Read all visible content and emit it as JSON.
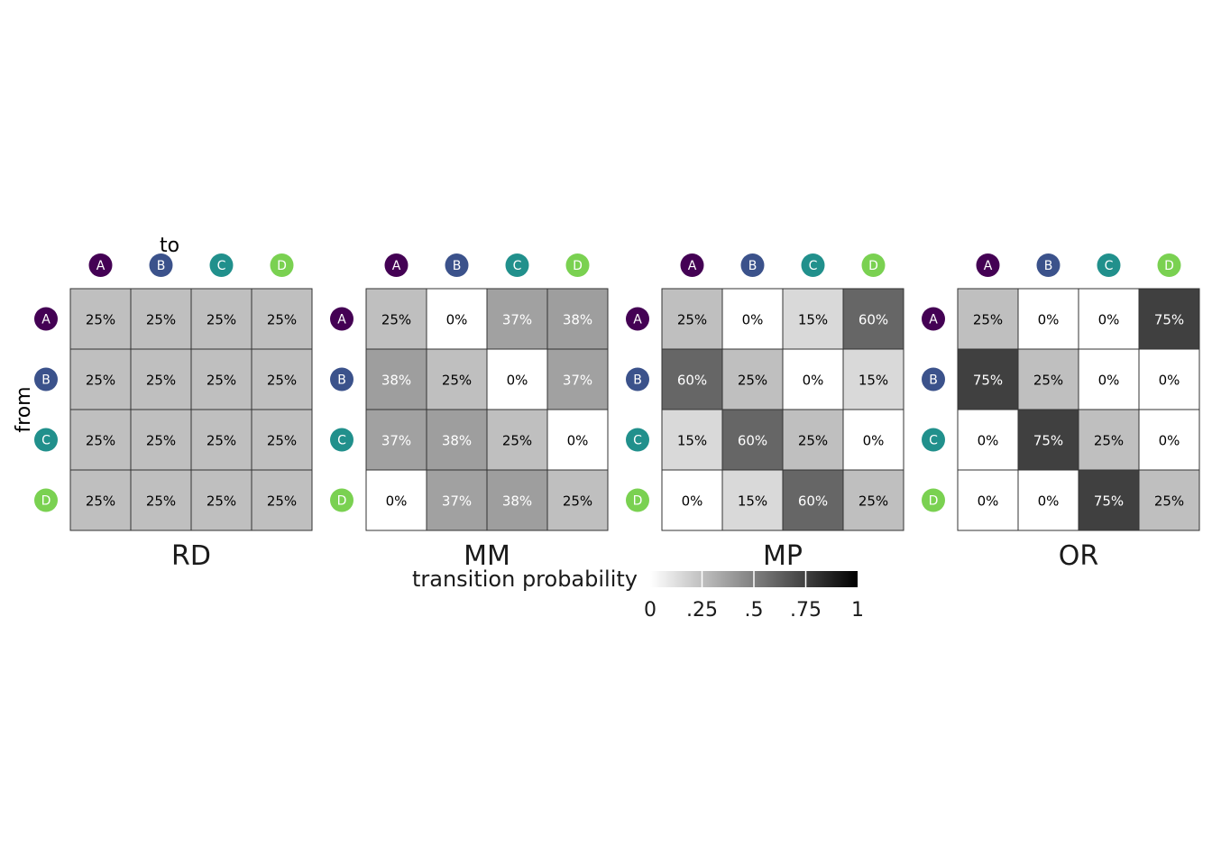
{
  "chart_data": {
    "type": "heatmap",
    "axis_labels": {
      "columns": "to",
      "rows": "from"
    },
    "states": [
      "A",
      "B",
      "C",
      "D"
    ],
    "state_colors": [
      "#440154",
      "#3b528b",
      "#21908c",
      "#7ad151"
    ],
    "panels": [
      {
        "name": "RD",
        "values": [
          [
            25,
            25,
            25,
            25
          ],
          [
            25,
            25,
            25,
            25
          ],
          [
            25,
            25,
            25,
            25
          ],
          [
            25,
            25,
            25,
            25
          ]
        ],
        "labels": [
          [
            "25%",
            "25%",
            "25%",
            "25%"
          ],
          [
            "25%",
            "25%",
            "25%",
            "25%"
          ],
          [
            "25%",
            "25%",
            "25%",
            "25%"
          ],
          [
            "25%",
            "25%",
            "25%",
            "25%"
          ]
        ]
      },
      {
        "name": "MM",
        "values": [
          [
            25,
            0,
            37,
            38
          ],
          [
            38,
            25,
            0,
            37
          ],
          [
            37,
            38,
            25,
            0
          ],
          [
            0,
            37,
            38,
            25
          ]
        ],
        "labels": [
          [
            "25%",
            "0%",
            "37%",
            "38%"
          ],
          [
            "38%",
            "25%",
            "0%",
            "37%"
          ],
          [
            "37%",
            "38%",
            "25%",
            "0%"
          ],
          [
            "0%",
            "37%",
            "38%",
            "25%"
          ]
        ]
      },
      {
        "name": "MP",
        "values": [
          [
            25,
            0,
            15,
            60
          ],
          [
            60,
            25,
            0,
            15
          ],
          [
            15,
            60,
            25,
            0
          ],
          [
            0,
            15,
            60,
            25
          ]
        ],
        "labels": [
          [
            "25%",
            "0%",
            "15%",
            "60%"
          ],
          [
            "60%",
            "25%",
            "0%",
            "15%"
          ],
          [
            "15%",
            "60%",
            "25%",
            "0%"
          ],
          [
            "0%",
            "15%",
            "60%",
            "25%"
          ]
        ]
      },
      {
        "name": "OR",
        "values": [
          [
            25,
            0,
            0,
            75
          ],
          [
            75,
            25,
            0,
            0
          ],
          [
            0,
            75,
            25,
            0
          ],
          [
            0,
            0,
            75,
            25
          ]
        ],
        "labels": [
          [
            "25%",
            "0%",
            "0%",
            "75%"
          ],
          [
            "75%",
            "25%",
            "0%",
            "0%"
          ],
          [
            "0%",
            "75%",
            "25%",
            "0%"
          ],
          [
            "0%",
            "0%",
            "75%",
            "25%"
          ]
        ]
      }
    ],
    "legend": {
      "title": "transition probability",
      "range": [
        0,
        1
      ],
      "ticks": [
        0,
        0.25,
        0.5,
        0.75,
        1
      ],
      "tick_labels": [
        "0",
        ".25",
        ".5",
        ".75",
        "1"
      ],
      "color_low": "#ffffff",
      "color_high": "#000000"
    }
  }
}
